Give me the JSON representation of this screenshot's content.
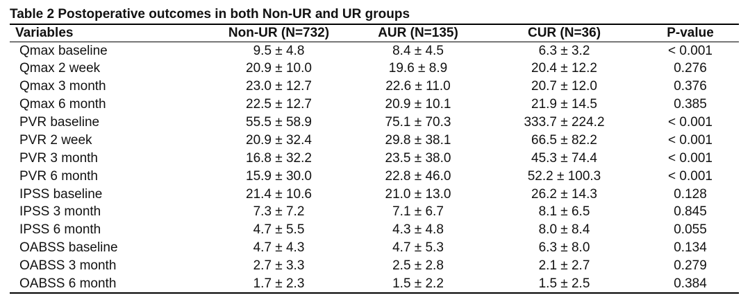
{
  "title": "Table 2 Postoperative outcomes in both Non-UR and UR groups",
  "headers": [
    "Variables",
    "Non-UR (N=732)",
    "AUR (N=135)",
    "CUR (N=36)",
    "P-value"
  ],
  "rows": [
    [
      "Qmax baseline",
      "9.5 ± 4.8",
      "8.4 ± 4.5",
      "6.3 ± 3.2",
      "< 0.001"
    ],
    [
      "Qmax 2 week",
      "20.9 ± 10.0",
      "19.6 ± 8.9",
      "20.4 ± 12.2",
      "0.276"
    ],
    [
      "Qmax 3 month",
      "23.0 ± 12.7",
      "22.6 ± 11.0",
      "20.7 ± 12.0",
      "0.376"
    ],
    [
      "Qmax 6 month",
      "22.5 ± 12.7",
      "20.9 ± 10.1",
      "21.9 ± 14.5",
      "0.385"
    ],
    [
      "PVR baseline",
      "55.5 ± 58.9",
      "75.1 ± 70.3",
      "333.7 ± 224.2",
      "< 0.001"
    ],
    [
      "PVR 2 week",
      "20.9 ± 32.4",
      "29.8 ± 38.1",
      "66.5 ± 82.2",
      "< 0.001"
    ],
    [
      "PVR 3 month",
      "16.8 ± 32.2",
      "23.5 ± 38.0",
      "45.3 ± 74.4",
      "< 0.001"
    ],
    [
      "PVR 6 month",
      "15.9 ± 30.0",
      "22.8 ± 46.0",
      "52.2 ± 100.3",
      "< 0.001"
    ],
    [
      "IPSS baseline",
      "21.4 ± 10.6",
      "21.0 ± 13.0",
      "26.2 ± 14.3",
      "0.128"
    ],
    [
      "IPSS 3 month",
      "7.3 ± 7.2",
      "7.1 ± 6.7",
      "8.1 ± 6.5",
      "0.845"
    ],
    [
      "IPSS 6 month",
      "4.7 ± 5.5",
      "4.3 ± 4.8",
      "8.0 ± 8.4",
      "0.055"
    ],
    [
      "OABSS baseline",
      "4.7 ± 4.3",
      "4.7 ± 5.3",
      "6.3 ± 8.0",
      "0.134"
    ],
    [
      "OABSS 3 month",
      "2.7 ± 3.3",
      "2.5 ± 2.8",
      "2.1 ± 2.7",
      "0.279"
    ],
    [
      "OABSS 6 month",
      "1.7 ± 2.3",
      "1.5 ± 2.2",
      "1.5 ± 2.5",
      "0.384"
    ]
  ]
}
